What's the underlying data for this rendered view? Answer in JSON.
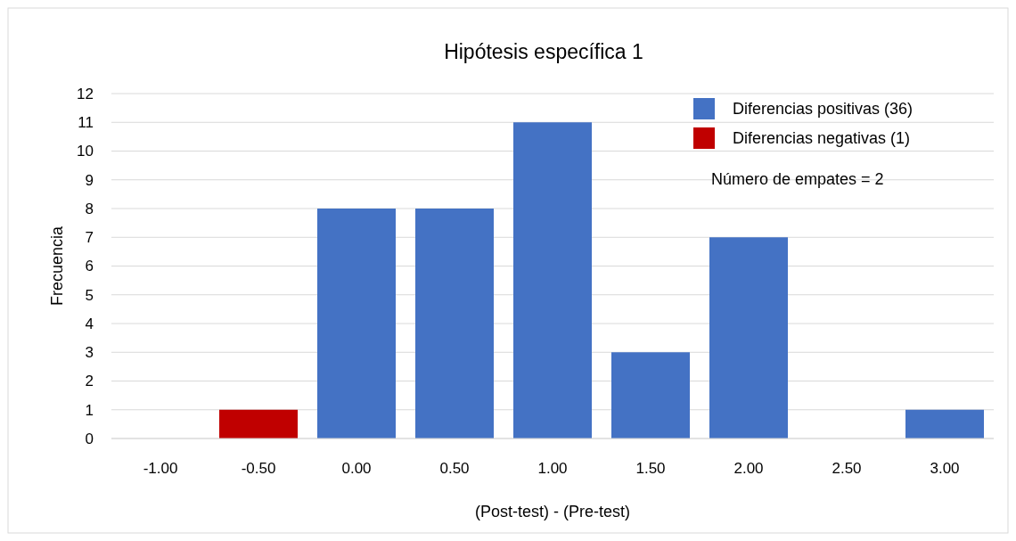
{
  "chart_data": {
    "type": "bar",
    "title": "Hipótesis específica 1",
    "xlabel": "(Post-test) - (Pre-test)",
    "ylabel": "Frecuencia",
    "categories": [
      "-1.00",
      "-0.50",
      "0.00",
      "0.50",
      "1.00",
      "1.50",
      "2.00",
      "2.50",
      "3.00"
    ],
    "series": [
      {
        "name": "Diferencias positivas (36)",
        "color": "#4472c4",
        "values": [
          0,
          null,
          8,
          8,
          11,
          3,
          7,
          0,
          1
        ]
      },
      {
        "name": "Diferencias negativas (1)",
        "color": "#c00000",
        "values": [
          null,
          1,
          null,
          null,
          null,
          null,
          null,
          null,
          null
        ]
      }
    ],
    "stacked": true,
    "ylim": [
      0,
      12
    ],
    "yticks": [
      0,
      1,
      2,
      3,
      4,
      5,
      6,
      7,
      8,
      9,
      10,
      11,
      12
    ],
    "grid": "y",
    "legend": "top right",
    "annotations": [
      "Número de empates = 2"
    ]
  }
}
